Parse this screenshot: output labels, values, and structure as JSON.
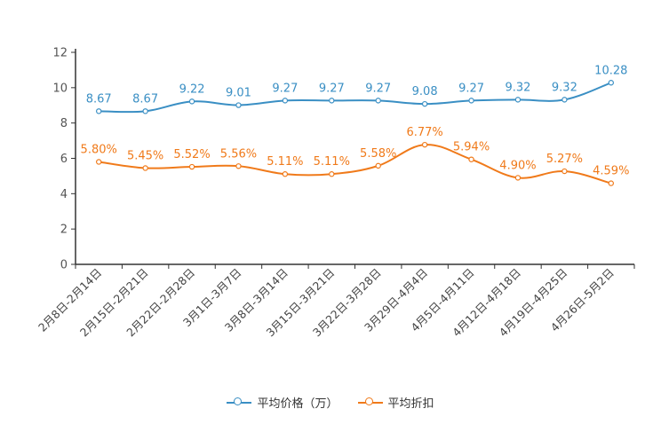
{
  "chart_data": {
    "type": "line",
    "categories": [
      "2月8日-2月14日",
      "2月15日-2月21日",
      "2月22日-2月28日",
      "3月1日-3月7日",
      "3月8日-3月14日",
      "3月15日-3月21日",
      "3月22日-3月28日",
      "3月29日-4月4日",
      "4月5日-4月11日",
      "4月12日-4月18日",
      "4月19日-4月25日",
      "4月26日-5月2日"
    ],
    "series": [
      {
        "name": "平均价格（万）",
        "color": "#3a8fc4",
        "values": [
          8.67,
          8.67,
          9.22,
          9.01,
          9.27,
          9.27,
          9.27,
          9.08,
          9.27,
          9.32,
          9.32,
          10.28
        ],
        "labels": [
          "8.67",
          "8.67",
          "9.22",
          "9.01",
          "9.27",
          "9.27",
          "9.27",
          "9.08",
          "9.27",
          "9.32",
          "9.32",
          "10.28"
        ]
      },
      {
        "name": "平均折扣",
        "color": "#f07a1a",
        "values": [
          5.8,
          5.45,
          5.52,
          5.56,
          5.11,
          5.11,
          5.58,
          6.77,
          5.94,
          4.9,
          5.27,
          4.59
        ],
        "labels": [
          "5.80%",
          "5.45%",
          "5.52%",
          "5.56%",
          "5.11%",
          "5.11%",
          "5.58%",
          "6.77%",
          "5.94%",
          "4.90%",
          "5.27%",
          "4.59%"
        ]
      }
    ],
    "ylim": [
      0,
      12
    ],
    "yticks": [
      "0",
      "2",
      "4",
      "6",
      "8",
      "10",
      "12"
    ],
    "legend_position": "bottom-center",
    "grid": false
  }
}
